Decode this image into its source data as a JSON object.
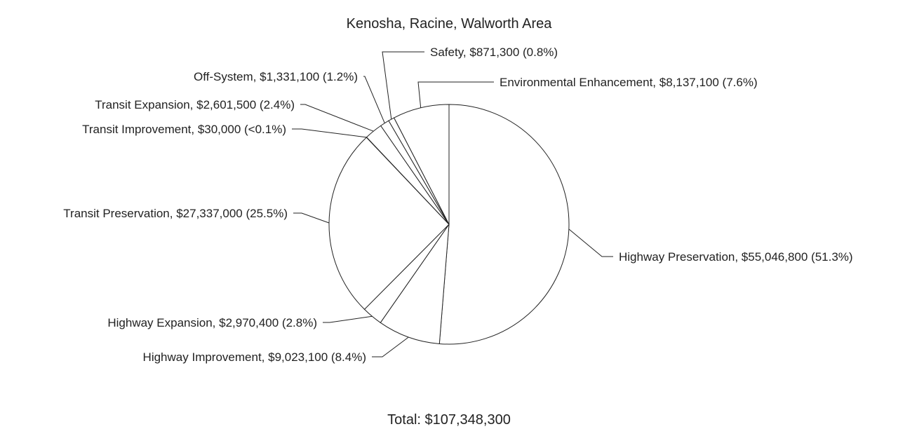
{
  "chart_data": {
    "type": "pie",
    "title": "Kenosha, Racine, Walworth Area",
    "total_label": "Total: $107,348,300",
    "slices": [
      {
        "name": "Highway Preservation",
        "value": 55046800,
        "label": "Highway Preservation, $55,046,800 (51.3%)"
      },
      {
        "name": "Highway Improvement",
        "value": 9023100,
        "label": "Highway Improvement, $9,023,100 (8.4%)"
      },
      {
        "name": "Highway Expansion",
        "value": 2970400,
        "label": "Highway Expansion, $2,970,400 (2.8%)"
      },
      {
        "name": "Transit Preservation",
        "value": 27337000,
        "label": "Transit Preservation, $27,337,000 (25.5%)"
      },
      {
        "name": "Transit Improvement",
        "value": 30000,
        "label": "Transit Improvement, $30,000 (<0.1%)"
      },
      {
        "name": "Transit Expansion",
        "value": 2601500,
        "label": "Transit Expansion, $2,601,500 (2.4%)"
      },
      {
        "name": "Off-System",
        "value": 1331100,
        "label": "Off-System, $1,331,100 (1.2%)"
      },
      {
        "name": "Safety",
        "value": 871300,
        "label": "Safety, $871,300 (0.8%)"
      },
      {
        "name": "Environmental Enhancement",
        "value": 8137100,
        "label": "Environmental Enhancement, $8,137,100 (7.6%)"
      }
    ]
  }
}
